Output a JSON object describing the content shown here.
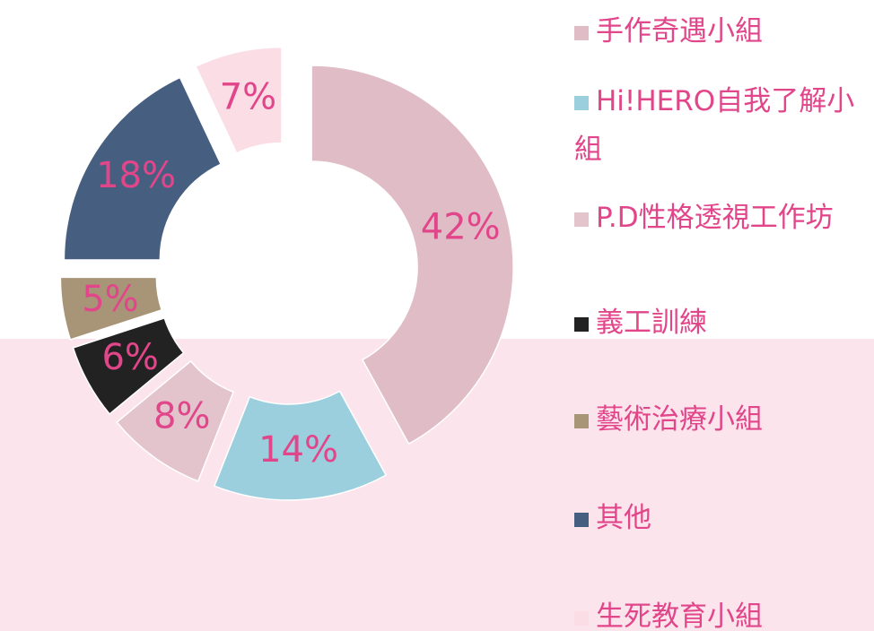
{
  "chart_data": {
    "type": "donut",
    "categories": [
      "手作奇遇小組",
      "Hi!HERO自我了解小組",
      "P.D性格透視工作坊",
      "義工訓練",
      "藝術治療小組",
      "其他",
      "生死教育小組"
    ],
    "values": [
      42,
      14,
      8,
      6,
      5,
      18,
      7
    ],
    "value_labels": [
      "42%",
      "14%",
      "8%",
      "6%",
      "5%",
      "18%",
      "7%"
    ],
    "colors": [
      "#e0bdc6",
      "#9ccfde",
      "#e3c3cc",
      "#222222",
      "#a89476",
      "#465f80",
      "#fbdde6"
    ],
    "legend": "right"
  }
}
